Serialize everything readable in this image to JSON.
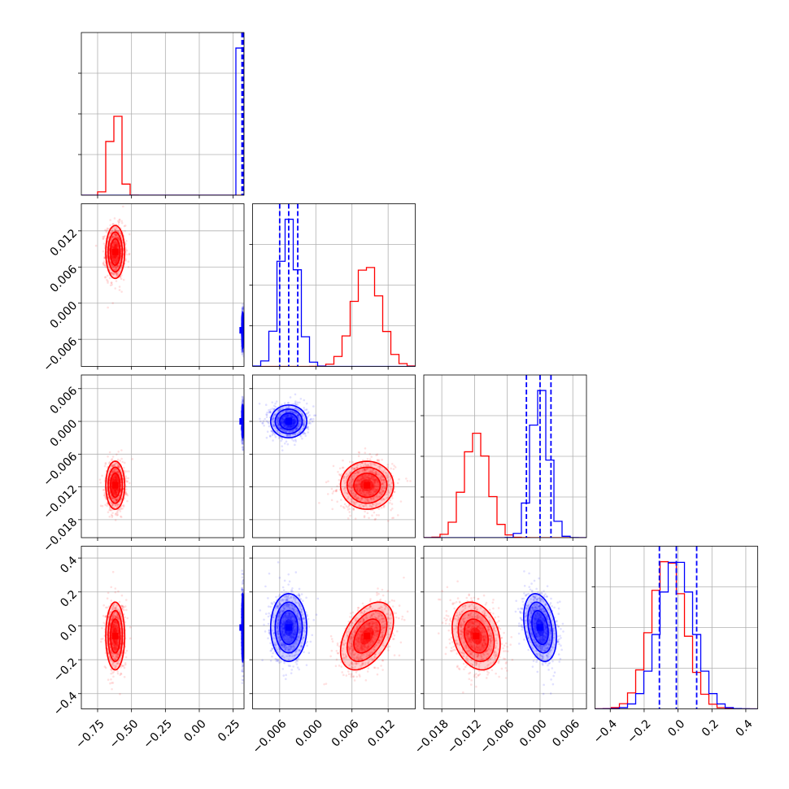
{
  "chart_data": {
    "type": "corner",
    "style": {
      "background": "#ffffff",
      "grid": true,
      "grid_color": "#b0b0b0",
      "axis_color": "#000000"
    },
    "series": [
      {
        "color": "#ff0000",
        "means": [
          -0.62,
          0.0085,
          -0.0117,
          -0.06
        ],
        "sds": [
          0.035,
          0.0022,
          0.0022,
          0.1
        ],
        "rho": {
          "0_1": 0.0,
          "0_2": 0.0,
          "0_3": 0.0,
          "1_2": 0.0,
          "1_3": 0.45,
          "2_3": -0.25
        }
      },
      {
        "color": "#0000ff",
        "means": [
          0.32,
          -0.0045,
          0.0,
          -0.01
        ],
        "sds": [
          0.003,
          0.0015,
          0.0015,
          0.1
        ],
        "rho": {
          "0_1": 0.0,
          "0_2": 0.0,
          "0_3": 0.0,
          "1_2": 0.0,
          "1_3": 0.0,
          "2_3": -0.3
        }
      }
    ],
    "params": [
      {
        "range": [
          -0.87,
          0.33
        ],
        "ticks": [
          -0.75,
          -0.5,
          -0.25,
          0.0,
          0.25
        ],
        "tick_labels": [
          "−0.75",
          "−0.50",
          "−0.25",
          "0.00",
          "0.25"
        ],
        "quantiles": [
          0.315,
          0.32,
          0.325
        ]
      },
      {
        "range": [
          -0.0105,
          0.0165
        ],
        "ticks": [
          -0.006,
          0.0,
          0.006,
          0.012
        ],
        "tick_labels": [
          "−0.006",
          "0.000",
          "0.006",
          "0.012"
        ],
        "quantiles": [
          -0.006,
          -0.0045,
          -0.003
        ]
      },
      {
        "range": [
          -0.0213,
          0.0085
        ],
        "ticks": [
          -0.018,
          -0.012,
          -0.006,
          0.0,
          0.006
        ],
        "tick_labels": [
          "−0.018",
          "−0.012",
          "−0.006",
          "0.000",
          "0.006"
        ],
        "quantiles": [
          -0.0025,
          0.0,
          0.002
        ]
      },
      {
        "range": [
          -0.49,
          0.47
        ],
        "ticks": [
          -0.4,
          -0.2,
          0.0,
          0.2,
          0.4
        ],
        "tick_labels": [
          "−0.4",
          "−0.2",
          "0.0",
          "0.2",
          "0.4"
        ],
        "quantiles": [
          -0.11,
          -0.01,
          0.11
        ]
      }
    ]
  }
}
